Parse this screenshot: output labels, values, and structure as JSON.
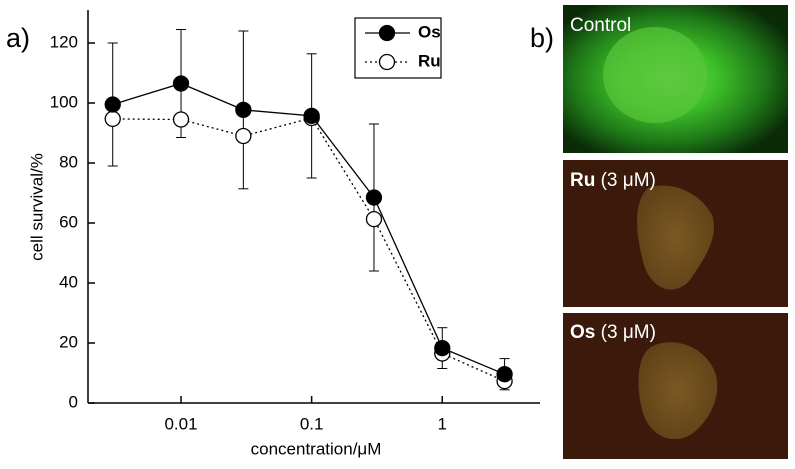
{
  "chart_data": {
    "type": "line",
    "panel_label": "a)",
    "xlabel": "concentration/μM",
    "ylabel": "cell survival/%",
    "xscale": "log",
    "x": [
      0.003,
      0.01,
      0.03,
      0.1,
      0.3,
      1,
      3
    ],
    "series": [
      {
        "name": "Os",
        "color": "#000000",
        "marker": "filled",
        "linestyle": "solid",
        "values": [
          99.5,
          106.5,
          97.7,
          95.7,
          68.5,
          18.3,
          9.6
        ],
        "error": [
          20.5,
          18,
          26.3,
          20.7,
          24.5,
          6.8,
          5.2
        ]
      },
      {
        "name": "Ru",
        "color": "#000000",
        "marker": "open",
        "linestyle": "dotted",
        "values": [
          94.7,
          94.5,
          89,
          95,
          61.3,
          16.5,
          7.3
        ]
      }
    ],
    "xlim": [
      0.00194,
      5.6
    ],
    "xticks": [
      0.01,
      0.1,
      1
    ],
    "ylim": [
      0,
      131
    ],
    "yticks": [
      0,
      20,
      40,
      60,
      80,
      100,
      120
    ]
  },
  "images": {
    "panel_label": "b)",
    "items": [
      {
        "label": "Control"
      },
      {
        "label_bold": "Ru",
        "label_rest": "(3 μM)"
      },
      {
        "label_bold": "Os",
        "label_rest": "(3 μM)"
      }
    ]
  }
}
